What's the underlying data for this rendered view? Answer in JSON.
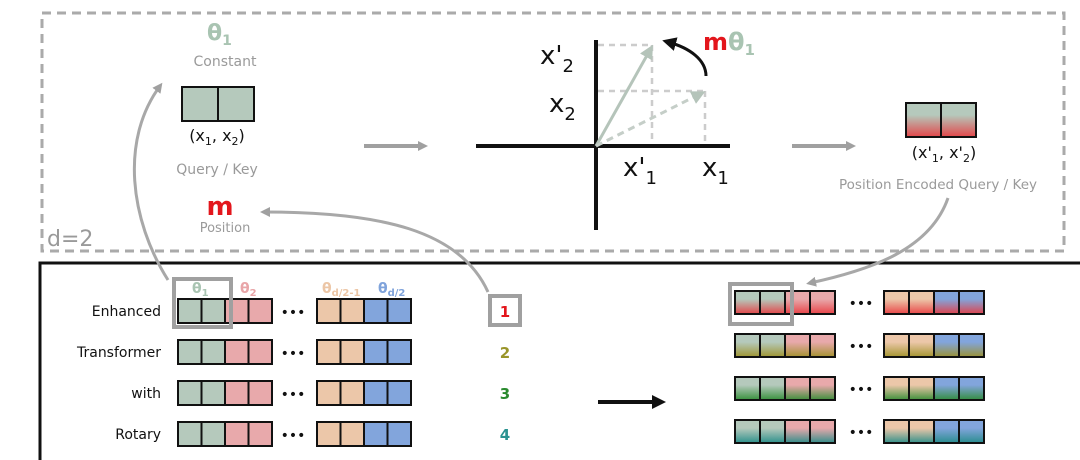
{
  "top_panel": {
    "dim_label": "d=2",
    "theta": {
      "symbol": "θ",
      "sub": "1"
    },
    "constant_label": "Constant",
    "query_coords": {
      "open": "(x",
      "s1": "1",
      "mid": ", x",
      "s2": "2",
      "close": ")"
    },
    "query_label": "Query / Key",
    "m_symbol": "m",
    "position_label": "Position",
    "plot_labels": {
      "x2p": {
        "main": "x'",
        "sub": "2"
      },
      "x2": {
        "main": "x",
        "sub": "2"
      },
      "x1p": {
        "main": "x'",
        "sub": "1"
      },
      "x1": {
        "main": "x",
        "sub": "1"
      },
      "rot_m": "m",
      "rot_theta": "θ",
      "rot_sub": "1"
    },
    "encoded_coords": {
      "open": "(x'",
      "s1": "1",
      "mid": ", x'",
      "s2": "2",
      "close": ")"
    },
    "encoded_label": "Position Encoded Query / Key"
  },
  "bottom_panel": {
    "row_labels": [
      "Enhanced",
      "Transformer",
      "with",
      "Rotary"
    ],
    "dots": "•••",
    "theta_headers": [
      {
        "main": "θ",
        "sub": "1",
        "color": "#a9c4b2"
      },
      {
        "main": "θ",
        "sub": "2",
        "color": "#e8a5a8"
      },
      {
        "main": "θ",
        "sub": "d/2-1",
        "color": "#ecc6a6"
      },
      {
        "main": "θ",
        "sub": "d/2",
        "color": "#7fa3db"
      }
    ],
    "positions": [
      {
        "label": "1",
        "color": "#e3161c"
      },
      {
        "label": "2",
        "color": "#9a952a"
      },
      {
        "label": "3",
        "color": "#2a8a2e"
      },
      {
        "label": "4",
        "color": "#2a9290"
      }
    ]
  },
  "colors": {
    "theta1": "#b5c9bc",
    "theta2": "#e8a9ab",
    "theta_d2m1": "#ecc7a9",
    "theta_d2": "#82a5dc",
    "encode_tints": [
      "#e8383d",
      "#9c8f22",
      "#2a8a2e",
      "#1f8a86"
    ],
    "arrow_gray": "#a0a0a0"
  }
}
